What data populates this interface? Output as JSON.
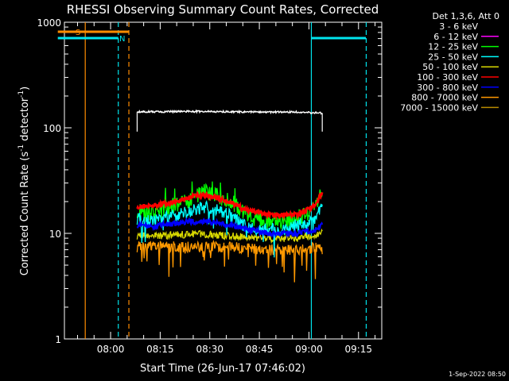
{
  "chart_data": {
    "type": "line",
    "title": "RHESSI Observing Summary Count Rates, Corrected",
    "xlabel": "Start Time (26-Jun-17 07:46:02)",
    "ylabel_main": "Corrected Count Rate (s",
    "ylabel_sup1": "-1",
    "ylabel_mid": " detector",
    "ylabel_sup2": "-1",
    "ylabel_end": ")",
    "yscale": "log",
    "ylim": [
      1,
      1000
    ],
    "y_ticks": [
      {
        "value": 1,
        "label": "1"
      },
      {
        "value": 10,
        "label": "10"
      },
      {
        "value": 100,
        "label": "100"
      },
      {
        "value": 1000,
        "label": "1000"
      }
    ],
    "x_unit": "minutes since 07:46:02",
    "xlim": [
      0,
      96
    ],
    "x_ticks": [
      {
        "value": 13.97,
        "label": "08:00"
      },
      {
        "value": 28.97,
        "label": "08:15"
      },
      {
        "value": 43.97,
        "label": "08:30"
      },
      {
        "value": 58.97,
        "label": "08:45"
      },
      {
        "value": 73.97,
        "label": "09:00"
      },
      {
        "value": 88.97,
        "label": "09:15"
      }
    ],
    "legend_title": "Det 1,3,6, Att 0",
    "legend_position": "right",
    "series": [
      {
        "name": "3 - 6 keV",
        "color": "#000000",
        "x": [
          22,
          78
        ],
        "y": [
          0,
          0
        ]
      },
      {
        "name": "6 - 12 keV",
        "color": "#ff00ff",
        "x": [
          22,
          78
        ],
        "y": [
          0,
          0
        ]
      },
      {
        "name": "12 - 25 keV",
        "color": "#00ff00",
        "x": [
          22,
          26,
          30,
          34,
          38,
          42,
          46,
          50,
          54,
          58,
          62,
          66,
          70,
          74,
          76,
          78
        ],
        "y": [
          17,
          15,
          17,
          19,
          21,
          25,
          23,
          21,
          16,
          14,
          13,
          13,
          14,
          16,
          18,
          25
        ]
      },
      {
        "name": "25 - 50 keV",
        "color": "#00ffff",
        "x": [
          22,
          26,
          30,
          34,
          38,
          42,
          46,
          50,
          54,
          58,
          62,
          66,
          70,
          74,
          76,
          78
        ],
        "y": [
          14,
          13,
          14,
          15,
          16,
          18,
          17,
          15,
          12,
          11,
          11,
          11,
          12,
          13,
          14,
          18
        ]
      },
      {
        "name": "50 - 100 keV",
        "color": "#d8d800",
        "x": [
          22,
          30,
          40,
          50,
          60,
          70,
          78
        ],
        "y": [
          9.5,
          9.5,
          10,
          9.5,
          9,
          9,
          10
        ]
      },
      {
        "name": "100 - 300 keV",
        "color": "#ff0000",
        "x": [
          22,
          26,
          30,
          34,
          38,
          42,
          46,
          50,
          54,
          58,
          62,
          66,
          70,
          74,
          76,
          78
        ],
        "y": [
          18,
          18,
          19,
          20,
          22,
          23,
          22,
          20,
          17,
          16,
          15,
          15,
          15,
          17,
          19,
          24
        ]
      },
      {
        "name": "300 - 800 keV",
        "color": "#0000ff",
        "x": [
          22,
          26,
          30,
          34,
          38,
          42,
          46,
          50,
          54,
          58,
          62,
          66,
          70,
          74,
          76,
          78
        ],
        "y": [
          12,
          11.5,
          12,
          12.5,
          13,
          13,
          12.5,
          12,
          11,
          10.5,
          10,
          10,
          10,
          10.5,
          11,
          12
        ]
      },
      {
        "name": "800 - 7000 keV",
        "color": "#ff9900",
        "x": [
          22,
          30,
          40,
          50,
          60,
          70,
          78
        ],
        "y": [
          7.5,
          7.5,
          7.5,
          7.5,
          7,
          7,
          7.5
        ]
      },
      {
        "name": "7000 - 15000 keV",
        "color": "#b88a00",
        "x": [
          22,
          78
        ],
        "y": [
          0,
          0
        ]
      },
      {
        "name": "",
        "color": "#000000",
        "x": [
          22,
          30,
          40,
          50,
          60,
          70,
          78
        ],
        "y": [
          142,
          142,
          143,
          142,
          141,
          141,
          138
        ]
      }
    ],
    "flags": [
      {
        "label": "S",
        "color": "#ff8c00",
        "x_start": -2,
        "x_end": 19.5
      },
      {
        "label": "N",
        "color": "#00e5ee",
        "x_start": -2,
        "x_end": 16.3
      },
      {
        "label": "",
        "color": "#00e5ee",
        "x_start": 74.7,
        "x_end": 91.3
      }
    ],
    "markers": [
      {
        "x": 6.3,
        "color": "#ff8c00",
        "style": "solid"
      },
      {
        "x": 16.3,
        "color": "#00e5ee",
        "style": "dashed"
      },
      {
        "x": 19.5,
        "color": "#ff8c00",
        "style": "dashed"
      },
      {
        "x": 74.7,
        "color": "#00e5ee",
        "style": "solid"
      },
      {
        "x": 91.3,
        "color": "#00e5ee",
        "style": "dashed"
      }
    ],
    "timestamp": "1-Sep-2022 08:50"
  }
}
